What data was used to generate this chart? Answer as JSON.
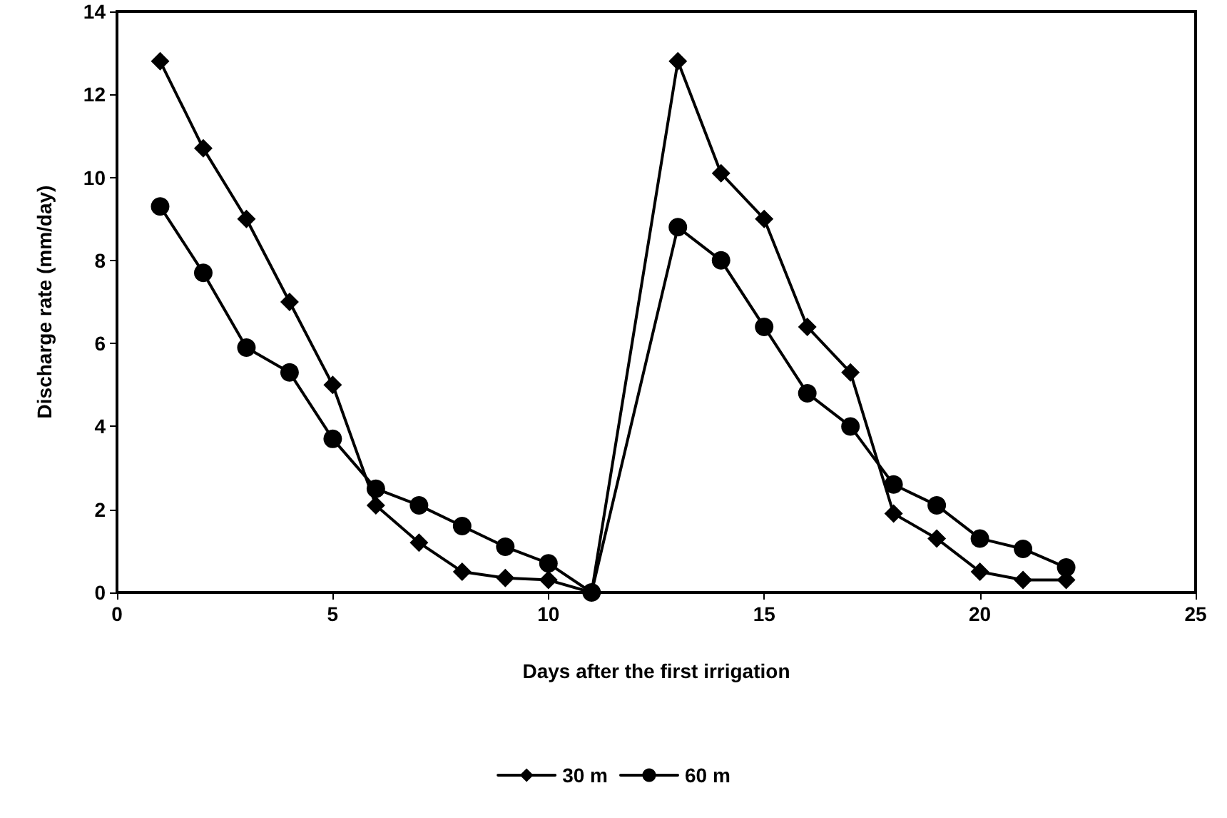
{
  "chart_data": {
    "type": "line",
    "xlabel": "Days after the first irrigation",
    "ylabel": "Discharge rate (mm/day)",
    "x": [
      1,
      2,
      3,
      4,
      5,
      6,
      7,
      8,
      9,
      10,
      11,
      13,
      14,
      15,
      16,
      17,
      18,
      19,
      20,
      21,
      22
    ],
    "series": [
      {
        "name": "30 m",
        "color": "#000000",
        "marker": "diamond",
        "values": [
          12.8,
          10.7,
          9.0,
          7.0,
          5.0,
          2.1,
          1.2,
          0.5,
          0.35,
          0.3,
          0,
          12.8,
          10.1,
          9.0,
          6.4,
          5.3,
          1.9,
          1.3,
          0.5,
          0.3,
          0.3
        ]
      },
      {
        "name": "60 m",
        "color": "#000000",
        "marker": "circle",
        "values": [
          9.3,
          7.7,
          5.9,
          5.3,
          3.7,
          2.5,
          2.1,
          1.6,
          1.1,
          0.7,
          0,
          8.8,
          8.0,
          6.4,
          4.8,
          4.0,
          2.6,
          2.1,
          1.3,
          1.05,
          0.6
        ]
      }
    ],
    "xlim": [
      0,
      25
    ],
    "xticks": [
      0,
      5,
      10,
      15,
      20,
      25
    ],
    "ylim": [
      0,
      14
    ],
    "yticks": [
      0,
      2,
      4,
      6,
      8,
      10,
      12,
      14
    ],
    "grid": false,
    "legend": "bottom",
    "line_style": "solid"
  }
}
